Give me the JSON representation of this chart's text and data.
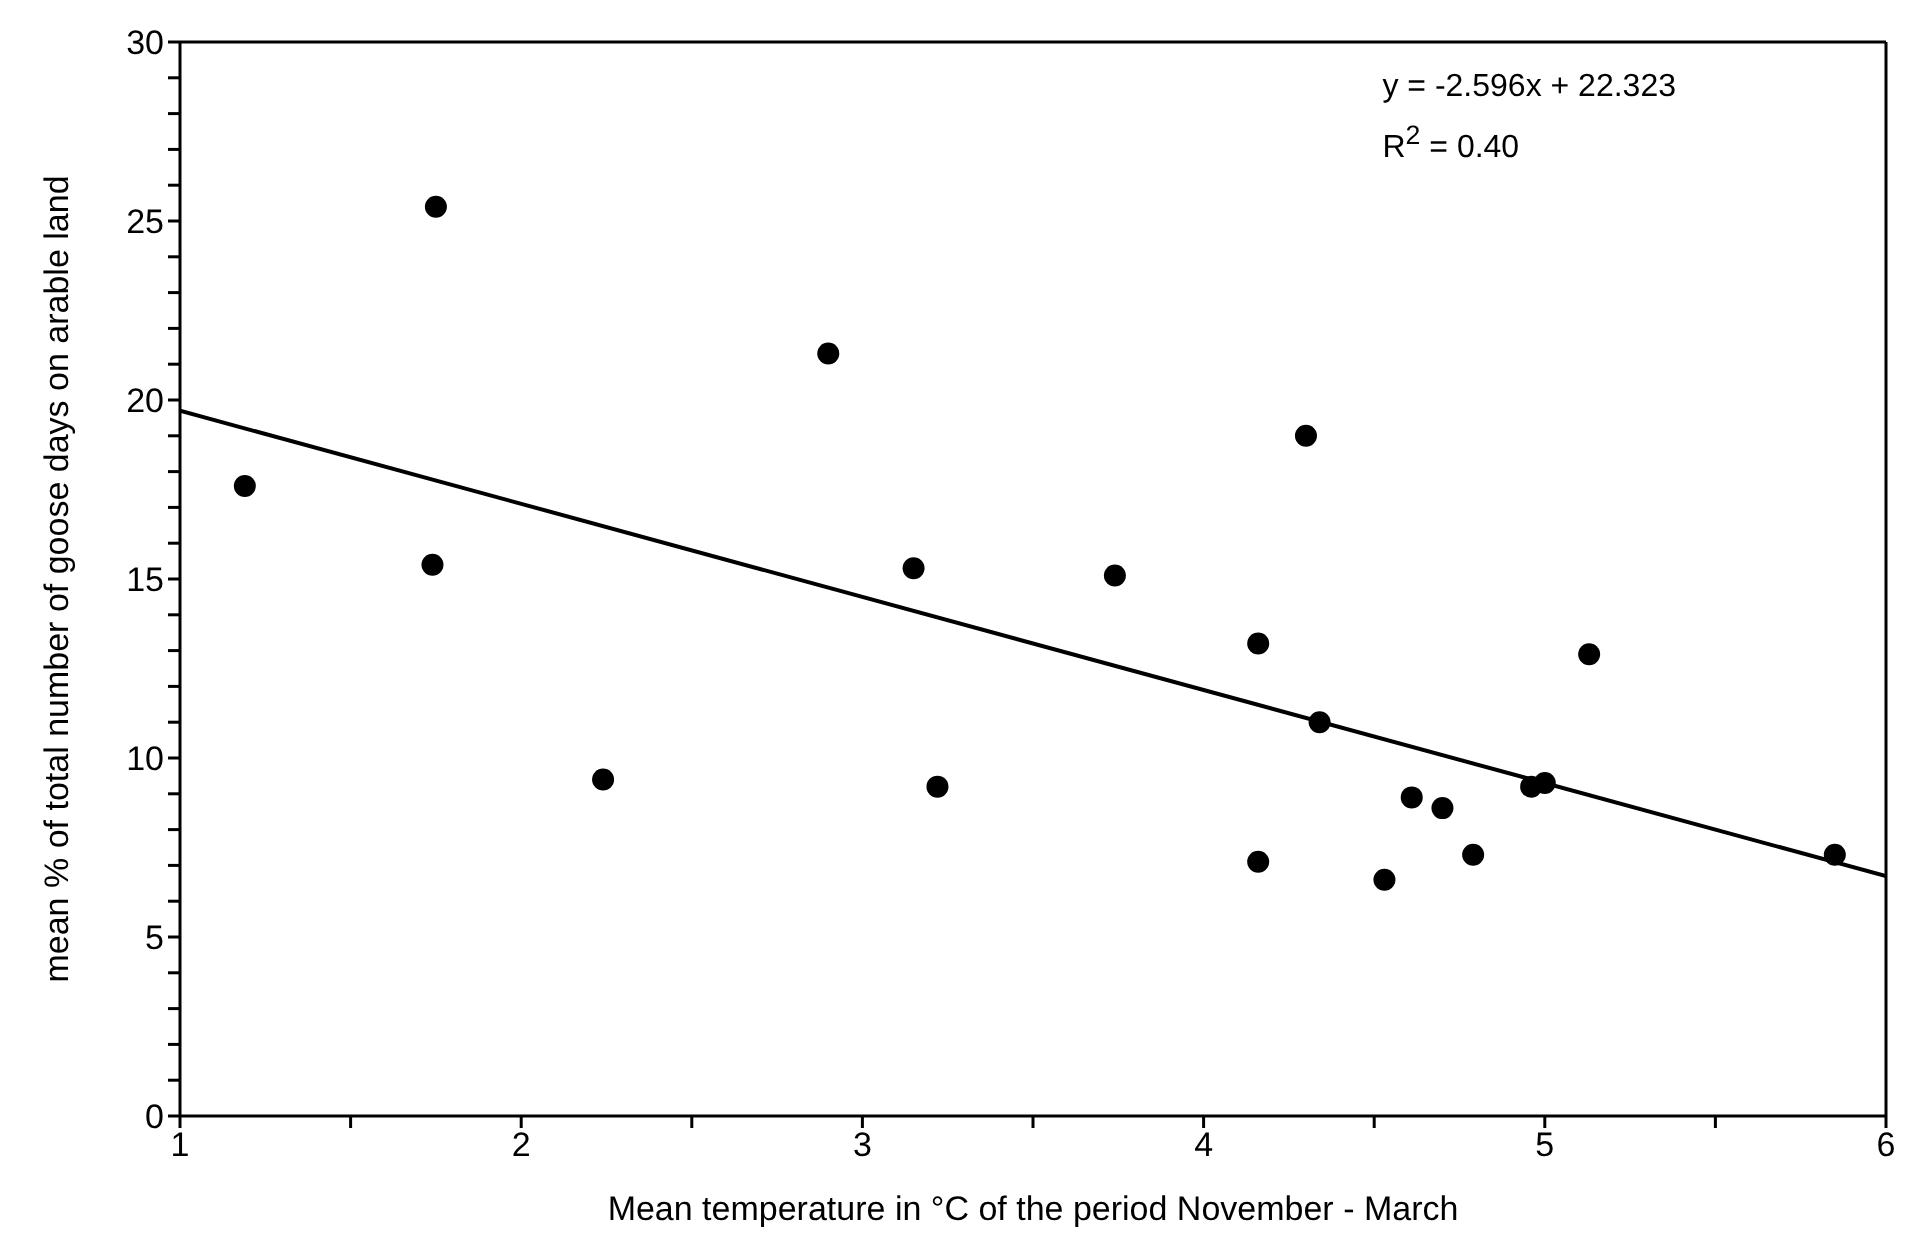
{
  "chart_data": {
    "type": "scatter",
    "xlabel": "Mean temperature in °C of the period November - March",
    "ylabel": "mean % of total number of goose days on arable land",
    "annotations": [
      "y = -2.596x + 22.323",
      "R$^{2}$ = 0.40"
    ],
    "xlim": [
      1,
      6
    ],
    "xticks": [
      1,
      {
        "value": 1.5,
        "label": null
      },
      2,
      {
        "value": 2.5,
        "label": null
      },
      3,
      {
        "value": 3.5,
        "label": null
      },
      4,
      {
        "value": 4.5,
        "label": null
      },
      5,
      {
        "value": 5.5,
        "label": null
      },
      6
    ],
    "ylim": [
      0,
      30
    ],
    "yticks": [
      0,
      {
        "value": 1,
        "label": null
      },
      {
        "value": 2,
        "label": null
      },
      {
        "value": 3,
        "label": null
      },
      {
        "value": 4,
        "label": null
      },
      5,
      {
        "value": 6,
        "label": null
      },
      {
        "value": 7,
        "label": null
      },
      {
        "value": 8,
        "label": null
      },
      {
        "value": 9,
        "label": null
      },
      10,
      {
        "value": 11,
        "label": null
      },
      {
        "value": 12,
        "label": null
      },
      {
        "value": 13,
        "label": null
      },
      {
        "value": 14,
        "label": null
      },
      15,
      {
        "value": 16,
        "label": null
      },
      {
        "value": 17,
        "label": null
      },
      {
        "value": 18,
        "label": null
      },
      {
        "value": 19,
        "label": null
      },
      20,
      {
        "value": 21,
        "label": null
      },
      {
        "value": 22,
        "label": null
      },
      {
        "value": 23,
        "label": null
      },
      {
        "value": 24,
        "label": null
      },
      25,
      {
        "value": 26,
        "label": null
      },
      {
        "value": 27,
        "label": null
      },
      {
        "value": 28,
        "label": null
      },
      {
        "value": 29,
        "label": null
      },
      30
    ],
    "grid": false,
    "legend": false,
    "marker": "circle",
    "series": [
      {
        "color": "#000000",
        "x": [
          1.19,
          1.75,
          1.74,
          2.24,
          2.9,
          3.15,
          3.22,
          3.74,
          4.3,
          4.16,
          4.34,
          5.13,
          4.16,
          4.53,
          4.61,
          4.7,
          4.79,
          4.96,
          5.0,
          5.85
        ],
        "values": [
          17.6,
          25.4,
          15.4,
          9.4,
          21.3,
          15.3,
          9.2,
          15.1,
          19.0,
          13.2,
          11.0,
          12.9,
          7.1,
          6.6,
          8.9,
          8.6,
          7.3,
          9.2,
          9.3,
          7.3
        ]
      },
      {
        "type": "line",
        "color": "#000000",
        "marker": "none",
        "line_style": "solid",
        "x": [
          1,
          6
        ],
        "values": [
          19.7,
          6.7
        ]
      }
    ]
  }
}
